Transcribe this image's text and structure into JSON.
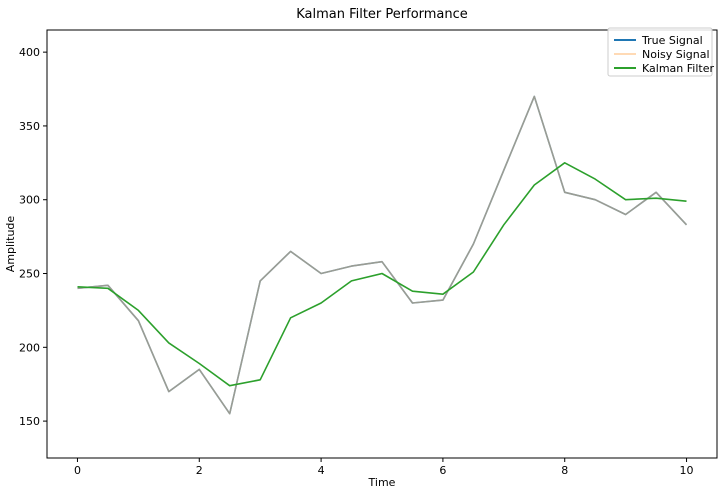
{
  "chart_data": {
    "type": "line",
    "title": "Kalman Filter Performance",
    "xlabel": "Time",
    "ylabel": "Amplitude",
    "xlim": [
      -0.5,
      10.5
    ],
    "ylim": [
      125,
      415
    ],
    "xticks": [
      0,
      2,
      4,
      6,
      8,
      10
    ],
    "yticks": [
      150,
      200,
      250,
      300,
      350,
      400
    ],
    "grid": false,
    "legend_position": "upper right",
    "series": [
      {
        "name": "True Signal",
        "color": "#1f77b4",
        "x": [
          0,
          0.5,
          1,
          1.5,
          2,
          2.5,
          3,
          3.5,
          4,
          4.5,
          5,
          5.5,
          6,
          6.5,
          7,
          7.5,
          8,
          8.5,
          9,
          9.5,
          10
        ],
        "y": [
          240,
          242,
          218,
          170,
          185,
          155,
          245,
          265,
          250,
          255,
          258,
          230,
          232,
          270,
          320,
          370,
          305,
          300,
          290,
          305,
          283
        ]
      },
      {
        "name": "Noisy Signal",
        "color": "#ffbb78",
        "x": [
          0,
          0.5,
          1,
          1.5,
          2,
          2.5,
          3,
          3.5,
          4,
          4.5,
          5,
          5.5,
          6,
          6.5,
          7,
          7.5,
          8,
          8.5,
          9,
          9.5,
          10
        ],
        "y": [
          240,
          242,
          218,
          170,
          185,
          155,
          245,
          265,
          250,
          255,
          258,
          230,
          232,
          270,
          320,
          370,
          305,
          300,
          290,
          305,
          283
        ]
      },
      {
        "name": "Kalman Filter",
        "color": "#2ca02c",
        "x": [
          0,
          0.5,
          1,
          1.5,
          2,
          2.5,
          3,
          3.5,
          4,
          4.5,
          5,
          5.5,
          6,
          6.5,
          7,
          7.5,
          8,
          8.5,
          9,
          9.5,
          10
        ],
        "y": [
          241,
          240,
          225,
          203,
          189,
          174,
          178,
          220,
          230,
          245,
          250,
          238,
          236,
          251,
          283,
          310,
          325,
          314,
          300,
          301,
          299
        ]
      }
    ]
  }
}
